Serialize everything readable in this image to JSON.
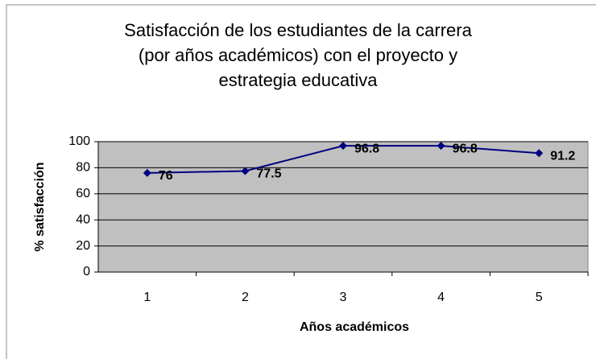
{
  "chart_data": {
    "type": "line",
    "title": "Satisfacción de los estudiantes   de la carrera\n(por años académicos) con el proyecto y\nestrategia educativa",
    "x_label": "Años académicos",
    "y_label": "% satisfacción",
    "categories": [
      "1",
      "2",
      "3",
      "4",
      "5"
    ],
    "series": [
      {
        "name": "% satisfacción",
        "color": "#00007f",
        "values": [
          76,
          77.5,
          96.8,
          96.8,
          91.2
        ]
      }
    ],
    "ylim": [
      0,
      100
    ],
    "yticks": [
      0,
      20,
      40,
      60,
      80,
      100
    ],
    "grid": true,
    "plot_background": "#c0c0c0"
  }
}
